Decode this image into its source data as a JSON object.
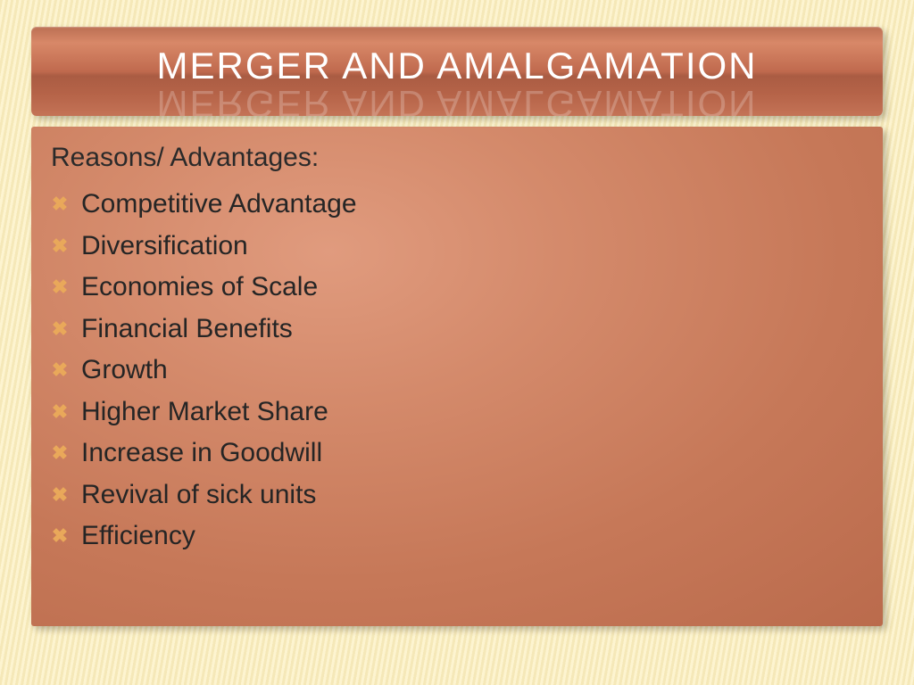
{
  "title": "MERGER AND AMALGAMATION",
  "subtitle": "Reasons/ Advantages:",
  "bullets": [
    "Competitive Advantage",
    "Diversification",
    "Economies of Scale",
    "Financial Benefits",
    "Growth",
    "Higher Market Share",
    "Increase in Goodwill",
    "Revival of sick units",
    "Efficiency"
  ],
  "colors": {
    "title_text": "#ffffff",
    "subtitle_text": "#2a2a2a",
    "bullet_marker": "#e9a85a",
    "bullet_text": "#252525"
  },
  "bullet_glyph": "✖"
}
